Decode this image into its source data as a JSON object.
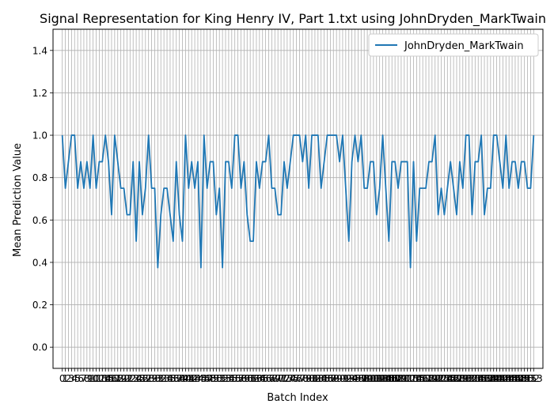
{
  "chart_data": {
    "type": "line",
    "title": "Signal Representation for King Henry IV, Part 1.txt using JohnDryden_MarkTwain",
    "xlabel": "Batch Index",
    "ylabel": "Mean Prediction Value",
    "ylim": [
      -0.1,
      1.5
    ],
    "xlim": [
      -3,
      156
    ],
    "yticks": [
      "0.0",
      "0.2",
      "0.4",
      "0.6",
      "0.8",
      "1.0",
      "1.2",
      "1.4"
    ],
    "xtick_note": "0 to 153, step 1 (labels overlap)",
    "grid": true,
    "legend": "top-right",
    "series": [
      {
        "name": "JohnDryden_MarkTwain",
        "color": "#1f77b4",
        "values": [
          1.0,
          0.75,
          0.875,
          1.0,
          1.0,
          0.75,
          0.875,
          0.75,
          0.875,
          0.75,
          1.0,
          0.75,
          0.875,
          0.875,
          1.0,
          0.875,
          0.625,
          1.0,
          0.875,
          0.75,
          0.75,
          0.625,
          0.625,
          0.875,
          0.5,
          0.875,
          0.625,
          0.75,
          1.0,
          0.75,
          0.75,
          0.375,
          0.625,
          0.75,
          0.75,
          0.625,
          0.5,
          0.875,
          0.625,
          0.5,
          1.0,
          0.75,
          0.875,
          0.75,
          0.875,
          0.375,
          1.0,
          0.75,
          0.875,
          0.875,
          0.625,
          0.75,
          0.375,
          0.875,
          0.875,
          0.75,
          1.0,
          1.0,
          0.75,
          0.875,
          0.625,
          0.5,
          0.5,
          0.875,
          0.75,
          0.875,
          0.875,
          1.0,
          0.75,
          0.75,
          0.625,
          0.625,
          0.875,
          0.75,
          0.875,
          1.0,
          1.0,
          1.0,
          0.875,
          1.0,
          0.75,
          1.0,
          1.0,
          1.0,
          0.75,
          0.875,
          1.0,
          1.0,
          1.0,
          1.0,
          0.875,
          1.0,
          0.75,
          0.5,
          0.875,
          1.0,
          0.875,
          1.0,
          0.75,
          0.75,
          0.875,
          0.875,
          0.625,
          0.75,
          1.0,
          0.75,
          0.5,
          0.875,
          0.875,
          0.75,
          0.875,
          0.875,
          0.875,
          0.375,
          0.875,
          0.5,
          0.75,
          0.75,
          0.75,
          0.875,
          0.875,
          1.0,
          0.625,
          0.75,
          0.625,
          0.75,
          0.875,
          0.75,
          0.625,
          0.875,
          0.75,
          1.0,
          1.0,
          0.625,
          0.875,
          0.875,
          1.0,
          0.625,
          0.75,
          0.75,
          1.0,
          1.0,
          0.875,
          0.75,
          1.0,
          0.75,
          0.875,
          0.875,
          0.75,
          0.875,
          0.875,
          0.75,
          0.75,
          1.0
        ]
      }
    ]
  }
}
